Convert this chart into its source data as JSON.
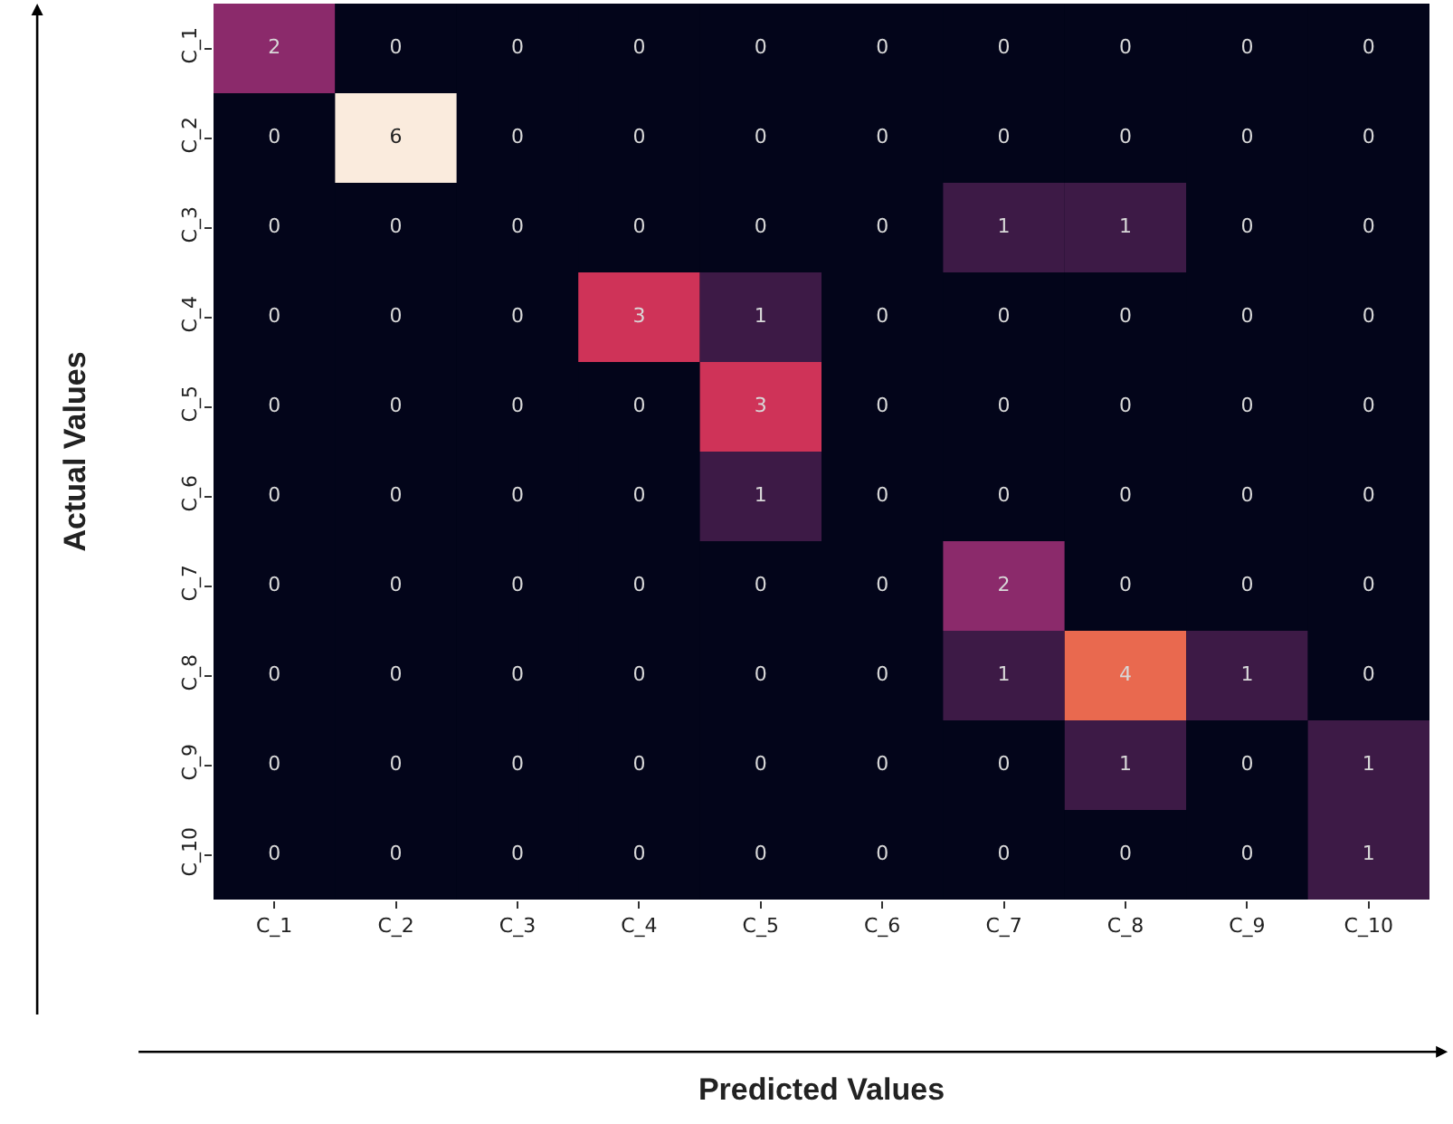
{
  "chart_data": {
    "type": "heatmap",
    "xlabel": "Predicted Values",
    "ylabel": "Actual Values",
    "categories": [
      "C_1",
      "C_2",
      "C_3",
      "C_4",
      "C_5",
      "C_6",
      "C_7",
      "C_8",
      "C_9",
      "C_10"
    ],
    "y_categories": [
      "C_1",
      "C_2",
      "C_3",
      "C_4",
      "C_5",
      "C_6",
      "C_7",
      "C_8",
      "C_9",
      "C_10"
    ],
    "cells": [
      [
        2,
        0,
        0,
        0,
        0,
        0,
        0,
        0,
        0,
        0
      ],
      [
        0,
        6,
        0,
        0,
        0,
        0,
        0,
        0,
        0,
        0
      ],
      [
        0,
        0,
        0,
        0,
        0,
        0,
        1,
        1,
        0,
        0
      ],
      [
        0,
        0,
        0,
        3,
        1,
        0,
        0,
        0,
        0,
        0
      ],
      [
        0,
        0,
        0,
        0,
        3,
        0,
        0,
        0,
        0,
        0
      ],
      [
        0,
        0,
        0,
        0,
        1,
        0,
        0,
        0,
        0,
        0
      ],
      [
        0,
        0,
        0,
        0,
        0,
        0,
        2,
        0,
        0,
        0
      ],
      [
        0,
        0,
        0,
        0,
        0,
        0,
        1,
        4,
        1,
        0
      ],
      [
        0,
        0,
        0,
        0,
        0,
        0,
        0,
        1,
        0,
        1
      ],
      [
        0,
        0,
        0,
        0,
        0,
        0,
        0,
        0,
        0,
        1
      ]
    ],
    "data_labels": true
  }
}
